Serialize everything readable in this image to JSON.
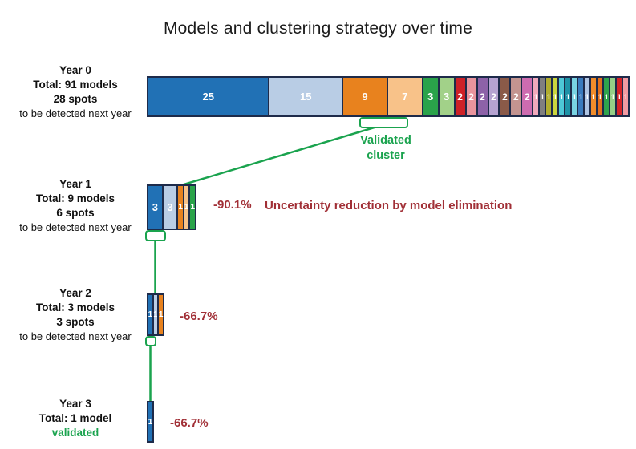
{
  "title": "Models and clustering strategy over time",
  "colors": {
    "green": "#1aa34e",
    "darkred": "#a12f36",
    "navy": "#1e2b4a",
    "background": "#ffffff"
  },
  "annotations": {
    "validated_line1": "Validated",
    "validated_line2": "cluster",
    "reduction_caption": "Uncertainty reduction by model elimination"
  },
  "chart_data": {
    "type": "bar",
    "variant": "horizontal-stacked-timeline",
    "title": "Models and clustering strategy over time",
    "years": [
      {
        "label": "Year 0",
        "total_label": "Total: 91 models",
        "spots_label": "28 spots",
        "note": "to be detected next year",
        "total_models": 91,
        "spots": 28,
        "segments": [
          {
            "value": 25,
            "color": "#2171b5"
          },
          {
            "value": 15,
            "color": "#b9cde5"
          },
          {
            "value": 9,
            "color": "#e8821e"
          },
          {
            "value": 7,
            "color": "#f8c289"
          },
          {
            "value": 3,
            "color": "#2aa34a"
          },
          {
            "value": 3,
            "color": "#a2d189"
          },
          {
            "value": 2,
            "color": "#ce2127"
          },
          {
            "value": 2,
            "color": "#e9949d"
          },
          {
            "value": 2,
            "color": "#8d62a8"
          },
          {
            "value": 2,
            "color": "#b6a3d1"
          },
          {
            "value": 2,
            "color": "#8a5a48"
          },
          {
            "value": 2,
            "color": "#c39490"
          },
          {
            "value": 2,
            "color": "#ce6cb0"
          },
          {
            "value": 1,
            "color": "#f2aabc"
          },
          {
            "value": 1,
            "color": "#7f7f7f"
          },
          {
            "value": 1,
            "color": "#b0ad2f"
          },
          {
            "value": 1,
            "color": "#ccd63e"
          },
          {
            "value": 1,
            "color": "#4ec7d6"
          },
          {
            "value": 1,
            "color": "#1e93a7"
          },
          {
            "value": 1,
            "color": "#79d3e2"
          },
          {
            "value": 1,
            "color": "#3a7bbd"
          },
          {
            "value": 1,
            "color": "#aec4e2"
          },
          {
            "value": 1,
            "color": "#f08c2b"
          },
          {
            "value": 1,
            "color": "#e2701d"
          },
          {
            "value": 1,
            "color": "#2fa44d"
          },
          {
            "value": 1,
            "color": "#96cf86"
          },
          {
            "value": 1,
            "color": "#d42429"
          },
          {
            "value": 1,
            "color": "#f29aa2"
          }
        ]
      },
      {
        "label": "Year 1",
        "total_label": "Total: 9 models",
        "spots_label": "6 spots",
        "note": "to be detected next year",
        "total_models": 9,
        "spots": 6,
        "reduction": "-90.1%",
        "segments": [
          {
            "value": 3,
            "color": "#2171b5"
          },
          {
            "value": 3,
            "color": "#b9cde5"
          },
          {
            "value": 1,
            "color": "#e8821e"
          },
          {
            "value": 1,
            "color": "#f8c289"
          },
          {
            "value": 1,
            "color": "#2aa34a"
          }
        ]
      },
      {
        "label": "Year 2",
        "total_label": "Total: 3 models",
        "spots_label": "3 spots",
        "note": "to be detected next year",
        "total_models": 3,
        "spots": 3,
        "reduction": "-66.7%",
        "segments": [
          {
            "value": 1,
            "color": "#2171b5"
          },
          {
            "value": 1,
            "color": "#b9cde5"
          },
          {
            "value": 1,
            "color": "#e8821e"
          }
        ]
      },
      {
        "label": "Year 3",
        "total_label": "Total: 1 model",
        "status": "validated",
        "total_models": 1,
        "reduction": "-66.7%",
        "segments": [
          {
            "value": 1,
            "color": "#2171b5"
          }
        ]
      }
    ]
  }
}
